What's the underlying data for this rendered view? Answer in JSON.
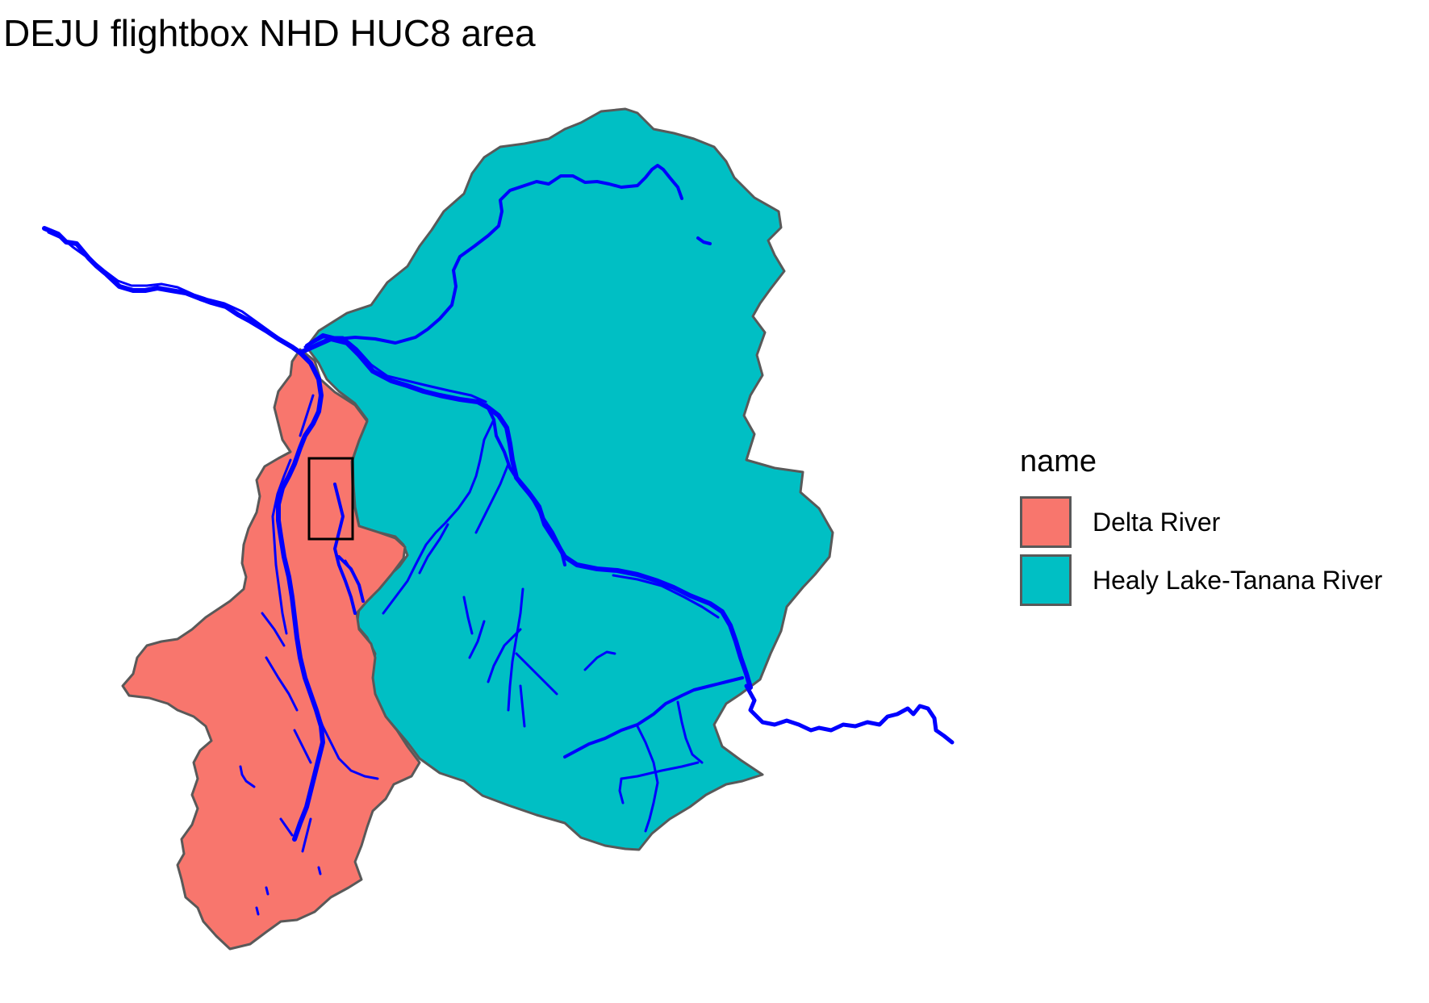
{
  "title": "DEJU flightbox NHD HUC8 area",
  "legend": {
    "title": "name",
    "items": [
      {
        "label": "Delta River",
        "color": "#F8766D"
      },
      {
        "label": "Healy Lake-Tanana River",
        "color": "#00BFC4"
      }
    ]
  },
  "map": {
    "basin_outline_color": "#595959",
    "flowline_color": "#0000FF",
    "flightbox_color": "#000000",
    "background": "#FFFFFF"
  }
}
